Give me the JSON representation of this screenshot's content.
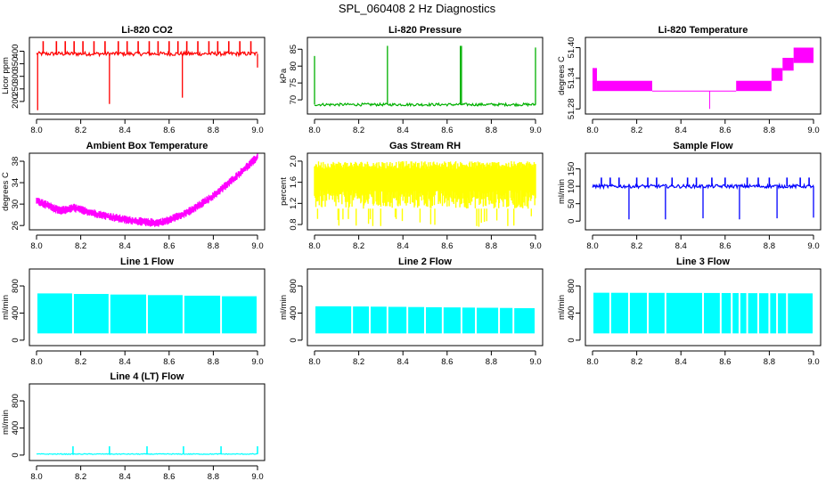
{
  "page": {
    "title": "SPL_060408  2 Hz Diagnostics"
  },
  "chart_data": [
    {
      "type": "line",
      "title": "Li-820 CO2",
      "ylabel": "Licor ppm",
      "color": "#ff0000",
      "xlim": [
        8.0,
        9.0
      ],
      "ylim": [
        150,
        455
      ],
      "xticks": [
        "8.0",
        "8.2",
        "8.4",
        "8.6",
        "8.8",
        "9.0"
      ],
      "yticks": [
        200,
        250,
        300,
        350,
        400
      ],
      "series": [
        {
          "name": "CO2",
          "pattern": "noise",
          "base": 390,
          "amp": 8,
          "spikes": [
            [
              8.005,
              165
            ],
            [
              8.33,
              190
            ],
            [
              8.66,
              215
            ],
            [
              9.0,
              335
            ]
          ],
          "upSpikes": [
            8.03,
            8.09,
            8.13,
            8.17,
            8.21,
            8.26,
            8.31,
            8.37,
            8.41,
            8.46,
            8.51,
            8.55,
            8.6,
            8.64,
            8.68,
            8.73,
            8.78,
            8.82,
            8.87,
            8.92,
            8.97
          ],
          "upTop": 440
        }
      ]
    },
    {
      "type": "line",
      "title": "Li-820 Pressure",
      "ylabel": "kPa",
      "color": "#00b000",
      "xlim": [
        8.0,
        9.0
      ],
      "ylim": [
        65.8,
        88.5
      ],
      "xticks": [
        "8.0",
        "8.2",
        "8.4",
        "8.6",
        "8.8",
        "9.0"
      ],
      "yticks": [
        70,
        75,
        80,
        85
      ],
      "series": [
        {
          "name": "Pressure",
          "pattern": "noise",
          "base": 68.6,
          "amp": 0.4,
          "spikes": [
            [
              8.0,
              83
            ],
            [
              8.33,
              86
            ],
            [
              8.66,
              86
            ],
            [
              8.665,
              86
            ],
            [
              9.0,
              85.5
            ]
          ],
          "upSpikes": [],
          "upTop": 0
        }
      ]
    },
    {
      "type": "line",
      "title": "Li-820 Temperature",
      "ylabel": "degrees C",
      "color": "#ff00ff",
      "xlim": [
        8.0,
        9.0
      ],
      "ylim": [
        51.27,
        51.42
      ],
      "xticks": [
        "8.0",
        "8.2",
        "8.4",
        "8.6",
        "8.8",
        "9.0"
      ],
      "yticks": [
        "51.28",
        "51.34",
        "51.40"
      ],
      "series": [
        {
          "name": "Temperature",
          "pattern": "steps",
          "steps": [
            [
              8.0,
              8.02,
              51.315,
              51.36
            ],
            [
              8.02,
              8.27,
              51.315,
              51.335
            ],
            [
              8.27,
              8.65,
              51.315,
              51.315
            ],
            [
              8.65,
              8.81,
              51.315,
              51.335
            ],
            [
              8.81,
              8.86,
              51.335,
              51.36
            ],
            [
              8.86,
              8.91,
              51.355,
              51.38
            ],
            [
              8.91,
              9.0,
              51.37,
              51.4
            ]
          ],
          "dip": [
            8.53,
            51.28
          ]
        }
      ]
    },
    {
      "type": "line",
      "title": "Ambient Box Temperature",
      "ylabel": "degrees C",
      "color": "#ff00ff",
      "xlim": [
        8.0,
        9.0
      ],
      "ylim": [
        25.2,
        39.5
      ],
      "xticks": [
        "8.0",
        "8.2",
        "8.4",
        "8.6",
        "8.8",
        "9.0"
      ],
      "yticks": [
        26,
        30,
        34,
        38
      ],
      "series": [
        {
          "name": "Ambient",
          "pattern": "curve",
          "curve": [
            [
              8.0,
              30.6
            ],
            [
              8.05,
              29.8
            ],
            [
              8.1,
              28.8
            ],
            [
              8.13,
              28.9
            ],
            [
              8.17,
              29.3
            ],
            [
              8.22,
              28.7
            ],
            [
              8.3,
              27.9
            ],
            [
              8.4,
              27.1
            ],
            [
              8.5,
              26.6
            ],
            [
              8.55,
              26.5
            ],
            [
              8.6,
              27.0
            ],
            [
              8.7,
              28.8
            ],
            [
              8.8,
              31.5
            ],
            [
              8.9,
              35.0
            ],
            [
              9.0,
              38.8
            ]
          ],
          "amp": 0.8
        }
      ]
    },
    {
      "type": "line",
      "title": "Gas Stream RH",
      "ylabel": "percent",
      "color": "#ffff00",
      "xlim": [
        8.0,
        9.0
      ],
      "ylim": [
        0.7,
        2.15
      ],
      "xticks": [
        "8.0",
        "8.2",
        "8.4",
        "8.6",
        "8.8",
        "9.0"
      ],
      "yticks": [
        "0.8",
        "1.2",
        "1.6",
        "2.0"
      ],
      "series": [
        {
          "name": "RH",
          "pattern": "band",
          "low": 1.1,
          "high": 2.0,
          "mid": 1.85,
          "min": 0.75
        }
      ]
    },
    {
      "type": "line",
      "title": "Sample Flow",
      "ylabel": "ml/min",
      "color": "#0000ff",
      "xlim": [
        8.0,
        9.0
      ],
      "ylim": [
        -25,
        195
      ],
      "xticks": [
        "8.0",
        "8.2",
        "8.4",
        "8.6",
        "8.8",
        "9.0"
      ],
      "yticks": [
        0,
        50,
        100,
        150
      ],
      "series": [
        {
          "name": "Sample",
          "pattern": "noise",
          "base": 100,
          "amp": 5,
          "spikes": [
            [
              8.165,
              5
            ],
            [
              8.33,
              5
            ],
            [
              8.5,
              8
            ],
            [
              8.665,
              5
            ],
            [
              8.835,
              8
            ],
            [
              9.0,
              10
            ]
          ],
          "upSpikes": [
            8.04,
            8.08,
            8.12,
            8.2,
            8.25,
            8.29,
            8.36,
            8.43,
            8.47,
            8.54,
            8.6,
            8.7,
            8.75,
            8.8,
            8.88,
            8.94,
            8.98
          ],
          "upTop": 125
        }
      ]
    },
    {
      "type": "line",
      "title": "Line 1 Flow",
      "ylabel": "ml/min",
      "color": "#00ffff",
      "xlim": [
        8.0,
        9.0
      ],
      "ylim": [
        -80,
        1050
      ],
      "xticks": [
        "8.0",
        "8.2",
        "8.4",
        "8.6",
        "8.8",
        "9.0"
      ],
      "yticks": [
        0,
        400,
        800
      ],
      "series": [
        {
          "name": "Line1",
          "pattern": "block",
          "low": 100,
          "high": 690,
          "gaps": [
            8.165,
            8.33,
            8.5,
            8.665,
            8.835
          ],
          "highEnd": 640
        }
      ]
    },
    {
      "type": "line",
      "title": "Line 2 Flow",
      "ylabel": "ml/min",
      "color": "#00ffff",
      "xlim": [
        8.0,
        9.0
      ],
      "ylim": [
        -80,
        1050
      ],
      "xticks": [
        "8.0",
        "8.2",
        "8.4",
        "8.6",
        "8.8",
        "9.0"
      ],
      "yticks": [
        0,
        400,
        800
      ],
      "series": [
        {
          "name": "Line2",
          "pattern": "block",
          "low": 100,
          "high": 500,
          "gaps": [
            8.17,
            8.25,
            8.33,
            8.42,
            8.5,
            8.58,
            8.665,
            8.73,
            8.835,
            8.9
          ],
          "highEnd": 470
        }
      ]
    },
    {
      "type": "line",
      "title": "Line 3 Flow",
      "ylabel": "ml/min",
      "color": "#00ffff",
      "xlim": [
        8.0,
        9.0
      ],
      "ylim": [
        -80,
        1050
      ],
      "xticks": [
        "8.0",
        "8.2",
        "8.4",
        "8.6",
        "8.8",
        "9.0"
      ],
      "yticks": [
        0,
        400,
        800
      ],
      "series": [
        {
          "name": "Line3",
          "pattern": "block",
          "low": 100,
          "high": 700,
          "gaps": [
            8.08,
            8.165,
            8.25,
            8.33,
            8.5,
            8.58,
            8.63,
            8.665,
            8.7,
            8.75,
            8.8,
            8.835,
            8.88
          ],
          "highEnd": 690
        }
      ]
    },
    {
      "type": "line",
      "title": "Line 4 (LT) Flow",
      "ylabel": "ml/min",
      "color": "#00ffff",
      "xlim": [
        8.0,
        9.0
      ],
      "ylim": [
        -80,
        1050
      ],
      "xticks": [
        "8.0",
        "8.2",
        "8.4",
        "8.6",
        "8.8",
        "9.0"
      ],
      "yticks": [
        0,
        400,
        800
      ],
      "series": [
        {
          "name": "Line4",
          "pattern": "noise",
          "base": 15,
          "amp": 6,
          "spikes": [],
          "upSpikes": [
            8.165,
            8.33,
            8.5,
            8.665,
            8.835,
            9.0
          ],
          "upTop": 130
        }
      ]
    }
  ]
}
